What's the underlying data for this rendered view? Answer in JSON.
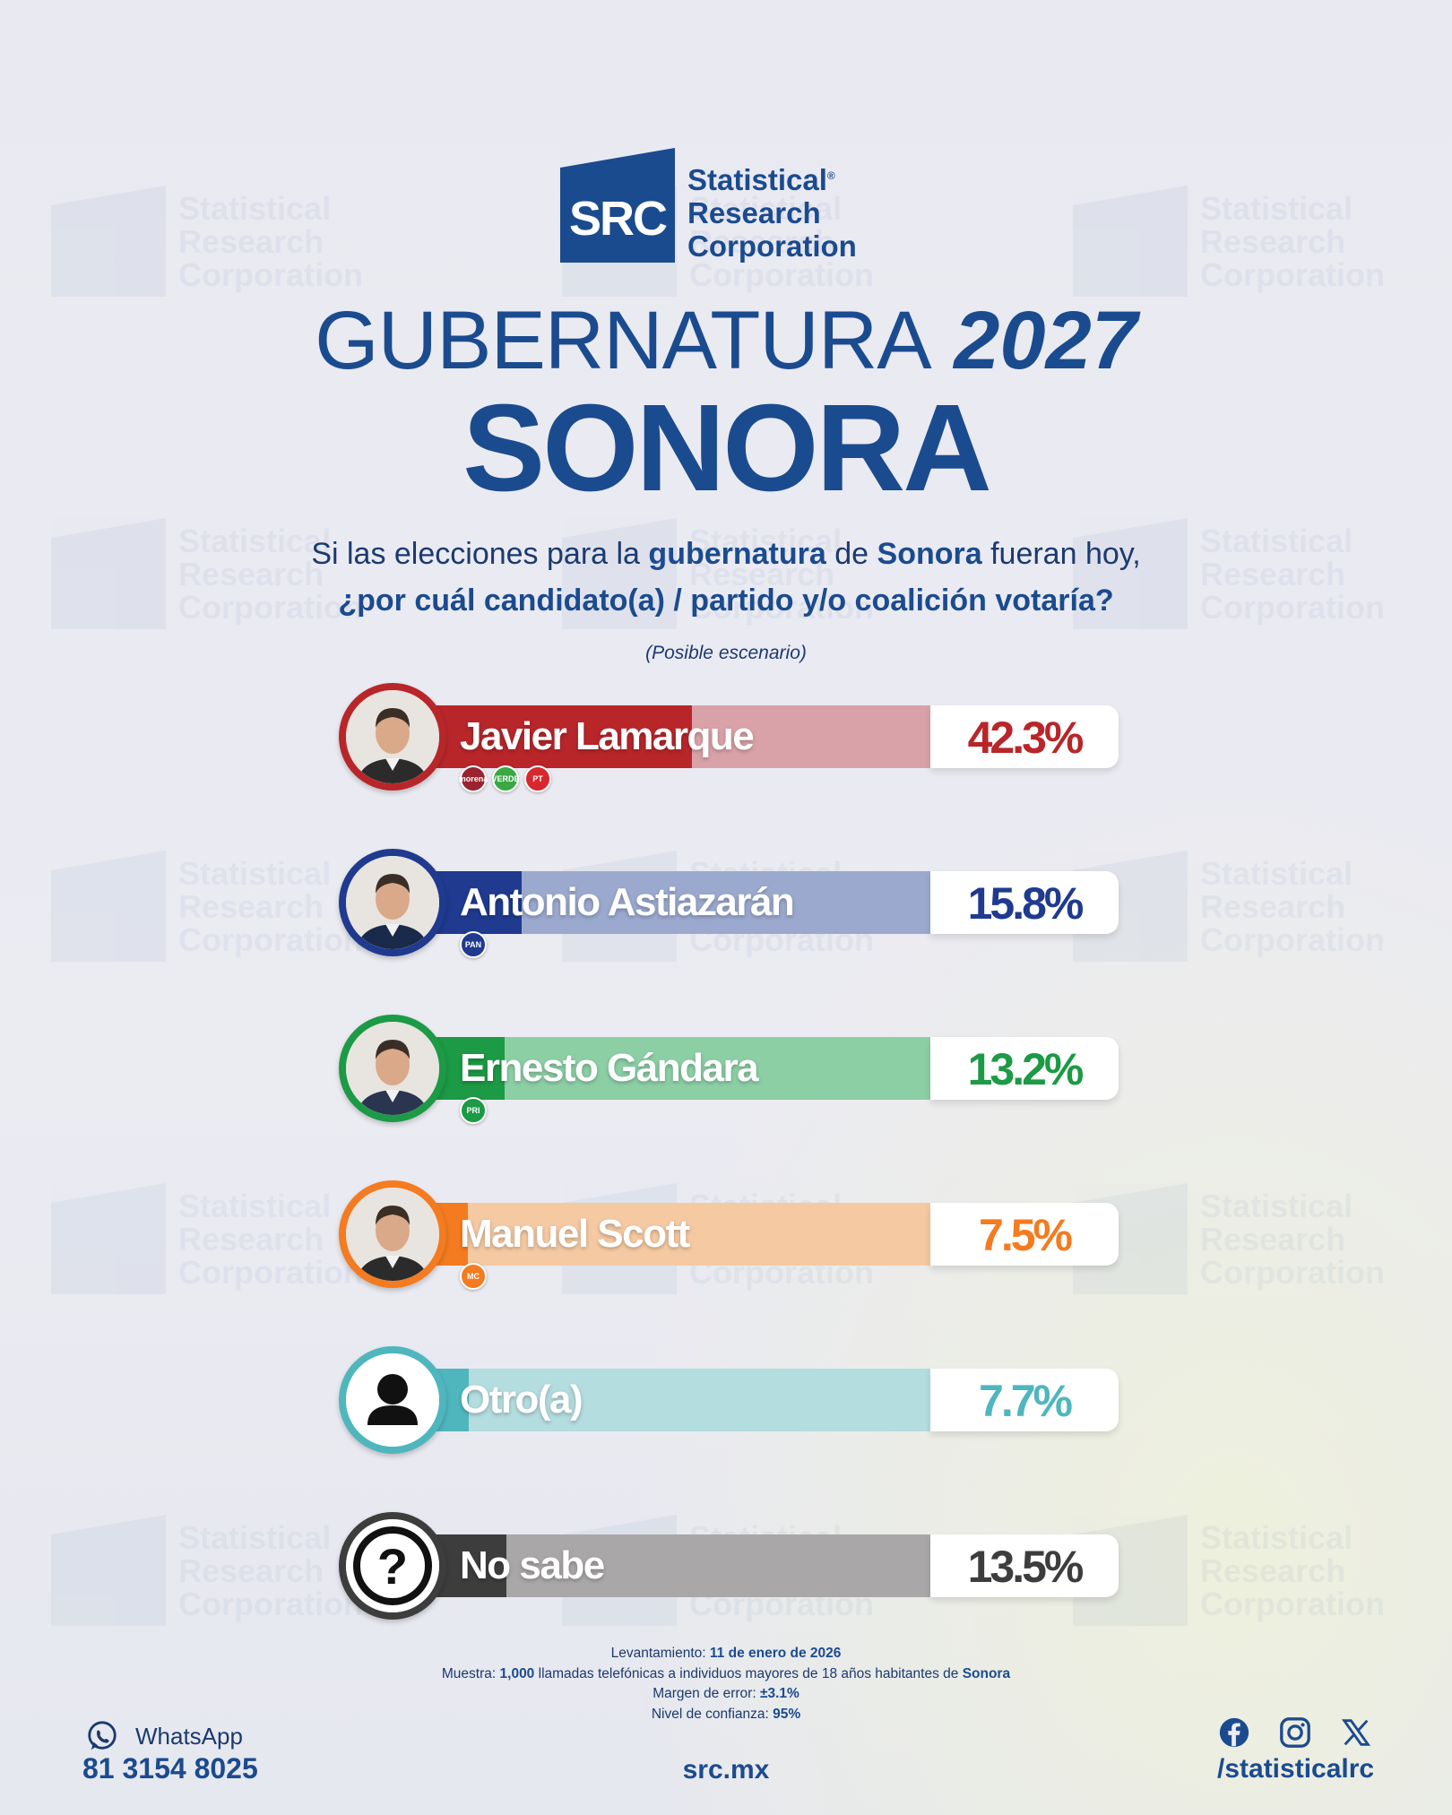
{
  "brand": {
    "mark": "SRC",
    "line1": "Statistical",
    "line2": "Research",
    "line3": "Corporation",
    "reg": "®",
    "color": "#1b4b8f"
  },
  "header": {
    "title_thin": "GUBERNATURA",
    "title_year": "2027",
    "state": "SONORA",
    "question_a": "Si las elecciones para la",
    "question_b": "gubernatura",
    "question_c": "de",
    "question_d": "Sonora",
    "question_e": "fueran hoy,",
    "question_line2": "¿por cuál candidato(a) / partido y/o coalición votaría?",
    "scenario": "(Posible escenario)"
  },
  "chart_data": {
    "type": "bar",
    "categories": [
      "Javier Lamarque",
      "Antonio Astiazarán",
      "Ernesto Gándara",
      "Manuel Scott",
      "Otro(a)",
      "No sabe"
    ],
    "values": [
      42.3,
      15.8,
      13.2,
      7.5,
      7.7,
      13.5
    ],
    "labels": [
      "42.3%",
      "15.8%",
      "13.2%",
      "7.5%",
      "7.7%",
      "13.5%"
    ],
    "unit": "%",
    "xlim": [
      0,
      100
    ],
    "colors": [
      "#b8262a",
      "#1f3a8f",
      "#1c9a45",
      "#f47b20",
      "#4fb6be",
      "#3d3d3d"
    ],
    "light_colors": [
      "#d9a2a8",
      "#9ba9cf",
      "#8ccfa5",
      "#f5c9a2",
      "#b4dde0",
      "#a9a7a8"
    ],
    "text_colors": [
      "#b8262a",
      "#1f3a8f",
      "#1c9a45",
      "#f47b20",
      "#4fb6be",
      "#3d3d3d"
    ],
    "parties": [
      [
        "morena",
        "VERDE",
        "PT"
      ],
      [
        "PAN"
      ],
      [
        "PRI"
      ],
      [
        "MC"
      ],
      [],
      []
    ],
    "party_colors": [
      [
        "#9b2230",
        "#3aa845",
        "#d8272e"
      ],
      [
        "#1f3a8f"
      ],
      [
        "#1c9a45"
      ],
      [
        "#f47b20"
      ],
      [],
      []
    ],
    "icons": [
      "candidate-photo",
      "candidate-photo",
      "candidate-photo",
      "candidate-photo",
      "user-silhouette-icon",
      "question-mark-icon"
    ]
  },
  "footer": {
    "l1_label": "Levantamiento:",
    "l1_value": "11 de enero de 2026",
    "l2_label": "Muestra:",
    "l2_value1": "1,000",
    "l2_mid": "llamadas telefónicas a individuos mayores de 18 años habitantes de",
    "l2_value2": "Sonora",
    "l3_label": "Margen de error:",
    "l3_value": "±3.1%",
    "l4_label": "Nivel de confianza:",
    "l4_value": "95%",
    "whatsapp_label": "WhatsApp",
    "phone": "81 3154 8025",
    "site": "src.mx",
    "handle": "/statisticalrc"
  }
}
